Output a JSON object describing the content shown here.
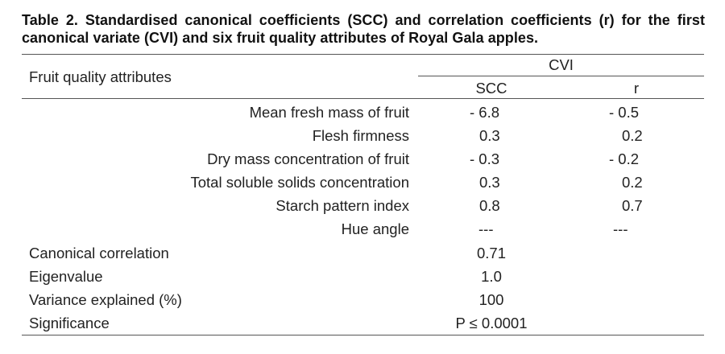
{
  "caption": "Table 2. Standardised canonical coefficients (SCC) and correlation coefficients (r) for the first canonical variate (CVI) and six fruit quality attributes of Royal Gala apples.",
  "header": {
    "row_label": "Fruit quality attributes",
    "group": "CVI",
    "col1": "SCC",
    "col2": "r"
  },
  "rows": [
    {
      "attribute": "Mean fresh mass of fruit",
      "scc": "- 6.8",
      "r": "- 0.5"
    },
    {
      "attribute": "Flesh firmness",
      "scc": "0.3",
      "r": "0.2"
    },
    {
      "attribute": "Dry mass concentration of fruit",
      "scc": "- 0.3",
      "r": "- 0.2"
    },
    {
      "attribute": "Total soluble solids concentration",
      "scc": "0.3",
      "r": "0.2"
    },
    {
      "attribute": "Starch pattern index",
      "scc": "0.8",
      "r": "0.7"
    },
    {
      "attribute": "Hue angle",
      "scc": "---",
      "r": "---"
    }
  ],
  "summary": [
    {
      "label": "Canonical correlation",
      "value": "0.71"
    },
    {
      "label": "Eigenvalue",
      "value": "1.0"
    },
    {
      "label": "Variance explained (%)",
      "value": "100"
    },
    {
      "label": "Significance",
      "value": "P ≤ 0.0001"
    }
  ]
}
